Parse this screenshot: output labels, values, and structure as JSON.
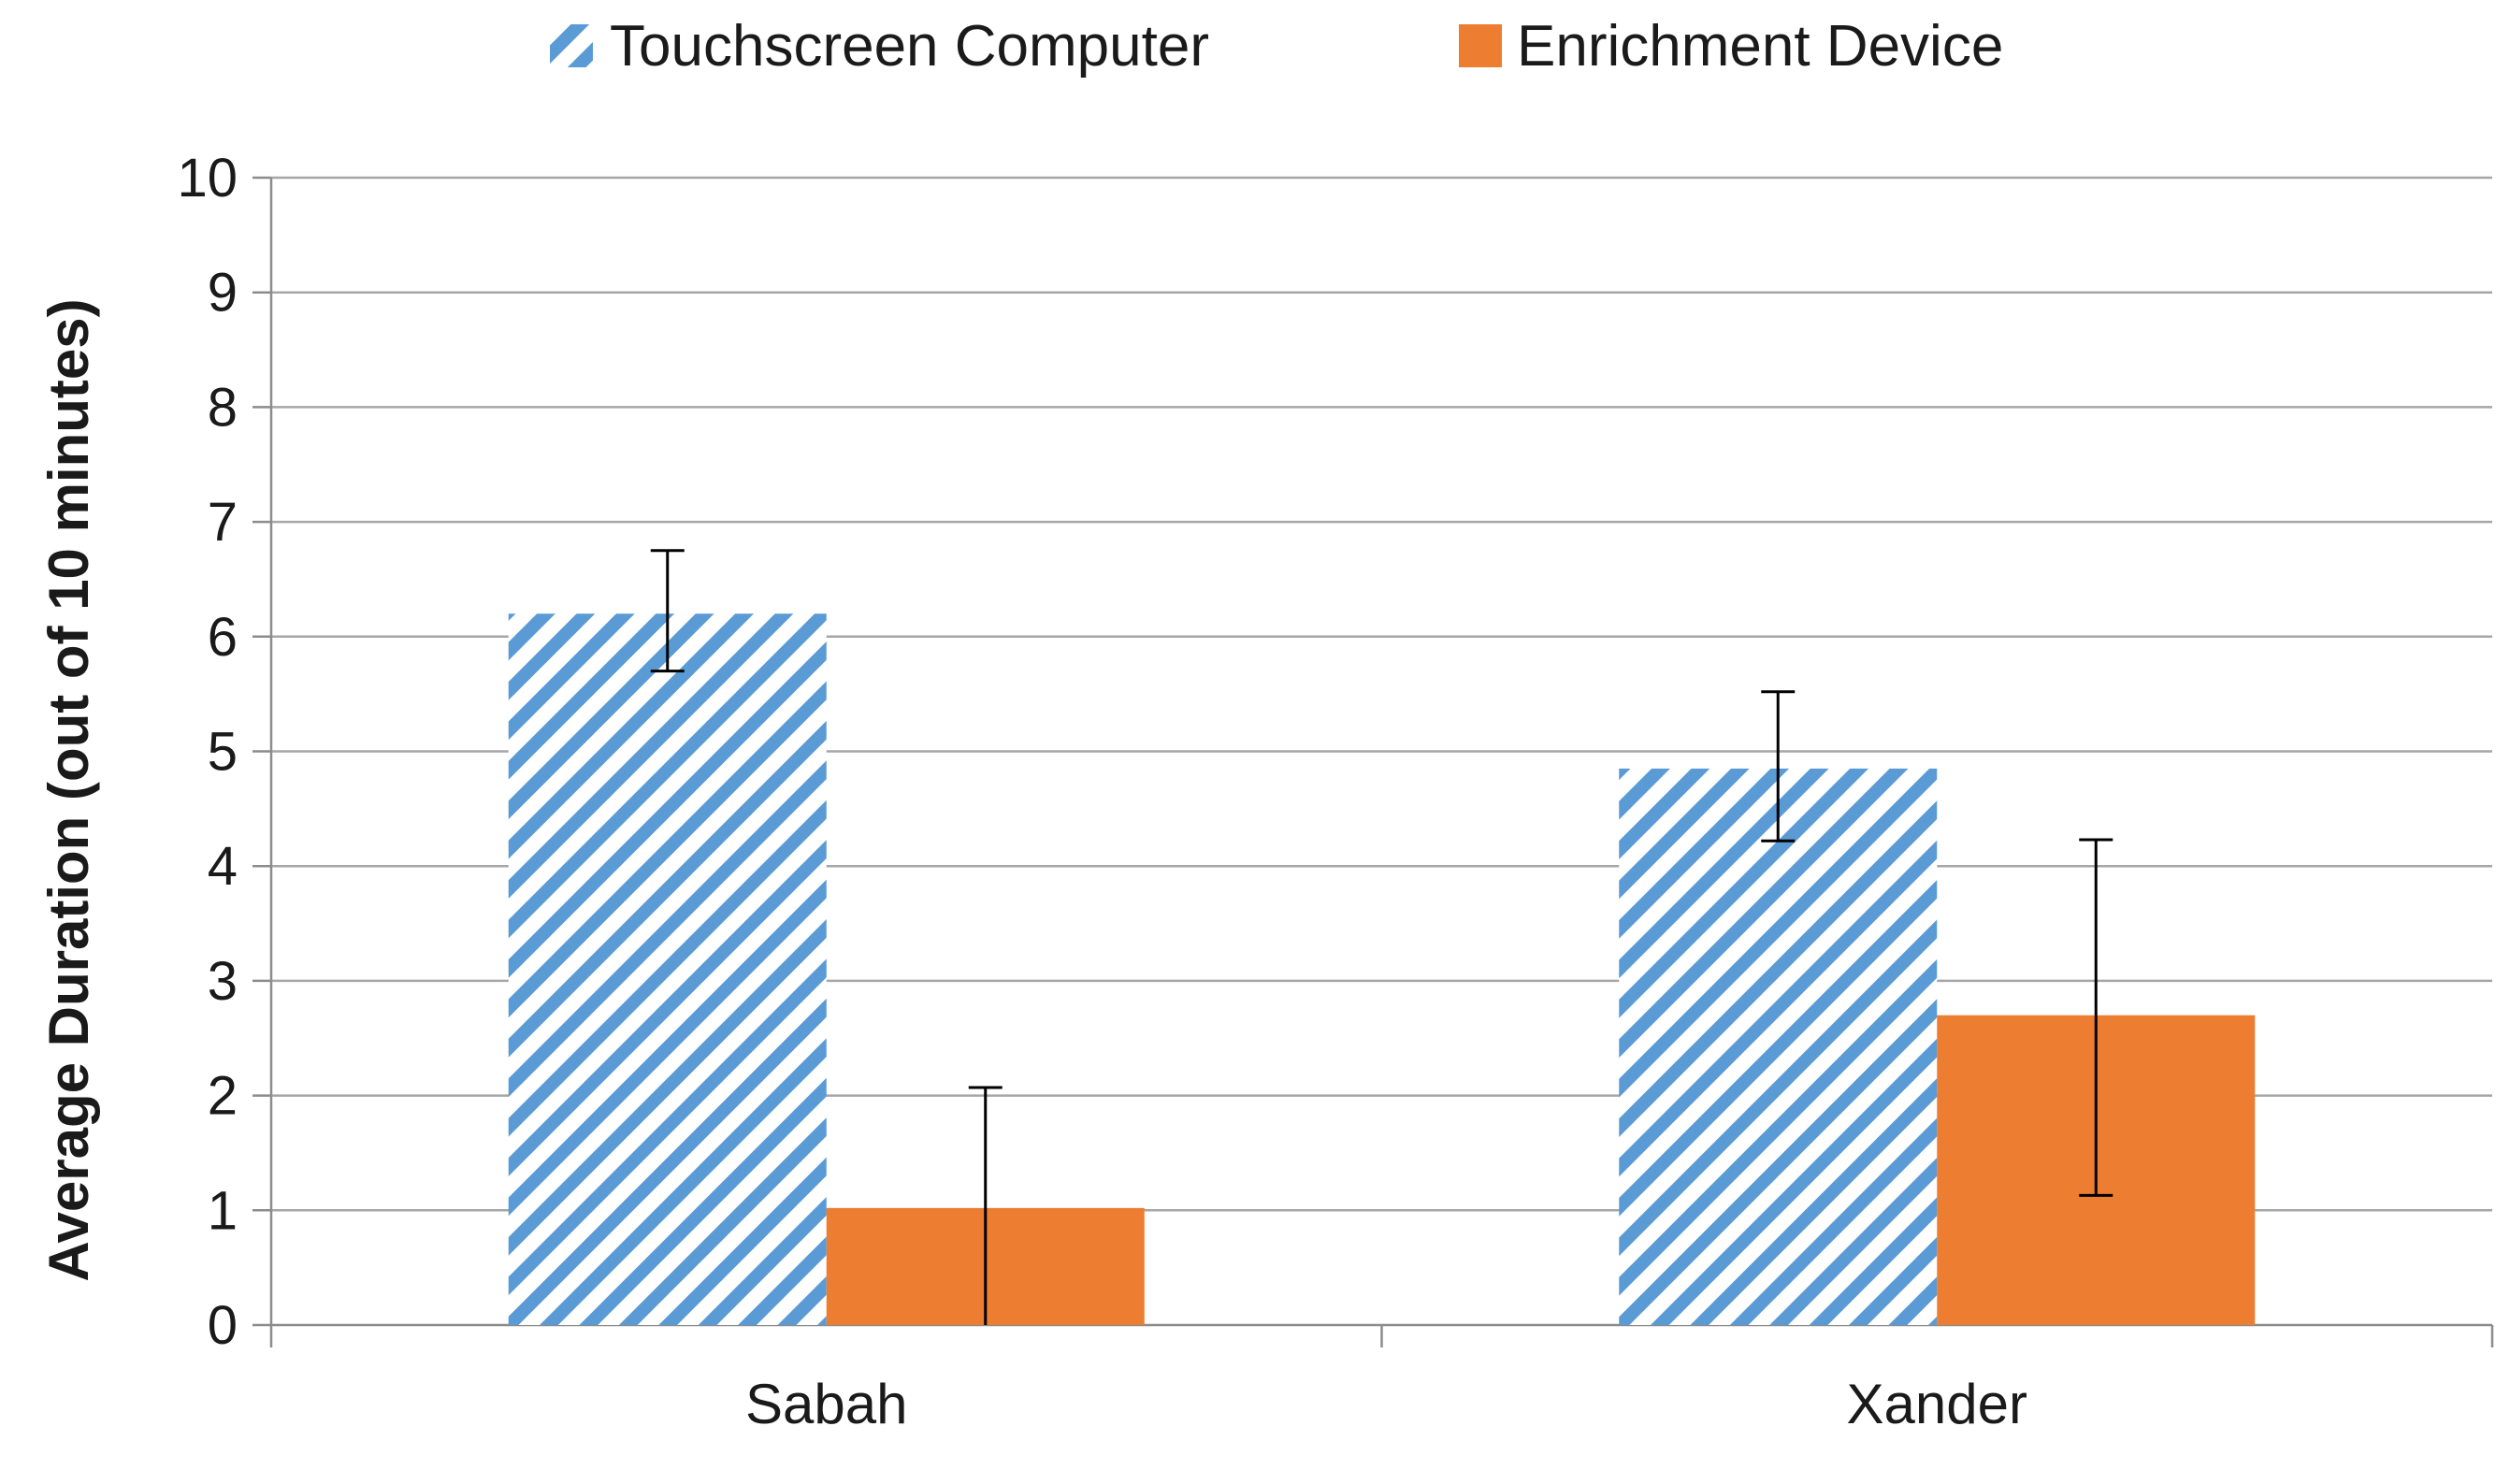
{
  "chart_data": {
    "type": "bar",
    "title": "",
    "xlabel": "",
    "ylabel": "Average Duration (out of 10 minutes)",
    "ylim": [
      0,
      10
    ],
    "yticks": [
      0,
      1,
      2,
      3,
      4,
      5,
      6,
      7,
      8,
      9,
      10
    ],
    "grid": true,
    "legend_position": "top",
    "categories": [
      "Sabah",
      "Xander"
    ],
    "series": [
      {
        "name": "Touchscreen Computer",
        "fill": "hatched",
        "color": "#5B9BD5",
        "values": [
          6.2,
          4.85
        ],
        "error_low": [
          5.7,
          4.22
        ],
        "error_high": [
          6.75,
          5.52
        ]
      },
      {
        "name": "Enrichment Device",
        "fill": "solid",
        "color": "#ED7D31",
        "values": [
          1.02,
          2.7
        ],
        "error_low": [
          0,
          1.13
        ],
        "error_high": [
          2.07,
          4.23
        ]
      }
    ]
  }
}
